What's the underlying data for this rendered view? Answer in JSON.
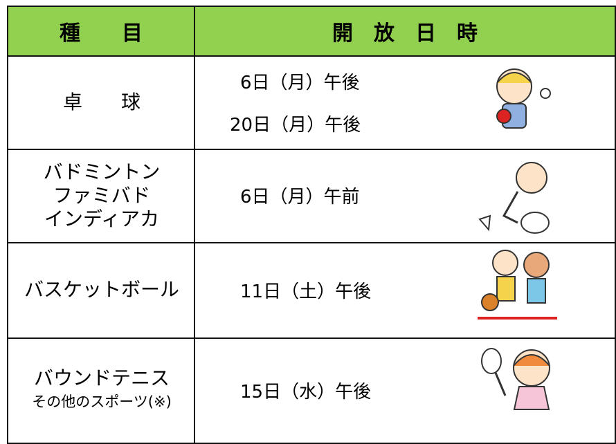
{
  "table": {
    "header": [
      "種　　目",
      "開　放　日　時"
    ],
    "rows": [
      {
        "event": [
          "卓　　球"
        ],
        "times": [
          "6日（月）午後",
          "20日（月）午後"
        ]
      },
      {
        "event": [
          "バドミントン",
          "ファミバド",
          "インディアカ"
        ],
        "times": [
          "6日（月）午前"
        ]
      },
      {
        "event": [
          "バスケットボール"
        ],
        "times": [
          "11日（土）午後"
        ]
      },
      {
        "event": [
          "バウンドテニス",
          "その他のスポーツ(※)"
        ],
        "times": [
          "15日（水）午後"
        ]
      }
    ]
  }
}
